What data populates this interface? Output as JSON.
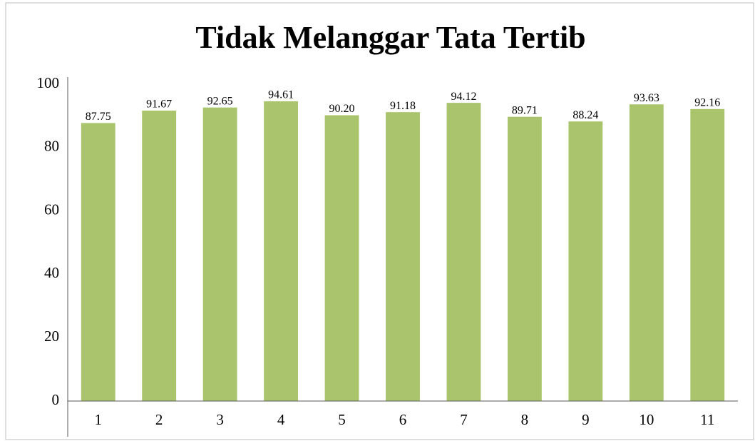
{
  "chart_data": {
    "type": "bar",
    "title": "Tidak Melanggar Tata Tertib",
    "categories": [
      "1",
      "2",
      "3",
      "4",
      "5",
      "6",
      "7",
      "8",
      "9",
      "10",
      "11"
    ],
    "values": [
      87.75,
      91.67,
      92.65,
      94.61,
      90.2,
      91.18,
      94.12,
      89.71,
      88.24,
      93.63,
      92.16
    ],
    "value_labels": [
      "87.75",
      "91.67",
      "92.65",
      "94.61",
      "90.20",
      "91.18",
      "94.12",
      "89.71",
      "88.24",
      "93.63",
      "92.16"
    ],
    "color": "#a9c46c",
    "ylim": [
      0,
      100
    ],
    "yticks": [
      0,
      20,
      40,
      60,
      80,
      100
    ],
    "grid": false
  }
}
